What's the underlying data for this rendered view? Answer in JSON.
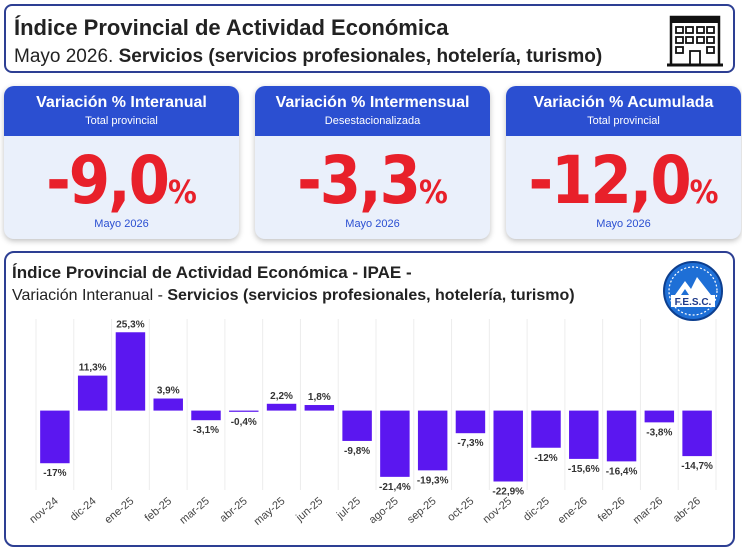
{
  "header": {
    "title": "Índice Provincial de Actividad Económica",
    "subtitle_prefix": "Mayo 2026. ",
    "subtitle_bold": "Servicios (servicios profesionales, hotelería, turismo)",
    "icon": "building-icon"
  },
  "cards": [
    {
      "title": "Variación % Interanual",
      "subtitle": "Total provincial",
      "value": "-9,0",
      "unit": "%",
      "footer": "Mayo 2026"
    },
    {
      "title": "Variación % Intermensual",
      "subtitle": "Desestacionalizada",
      "value": "-3,3",
      "unit": "%",
      "footer": "Mayo 2026"
    },
    {
      "title": "Variación % Acumulada",
      "subtitle": "Total provincial",
      "value": "-12,0",
      "unit": "%",
      "footer": "Mayo 2026"
    }
  ],
  "colors": {
    "accent": "#2b4fd1",
    "border": "#2d3f93",
    "negative_value": "#e8202a",
    "bar": "#5b17f0",
    "card_bg": "#eaf0fb"
  },
  "logo": {
    "text": "F.E.S.C."
  },
  "chart_data": {
    "type": "bar",
    "title": "Índice Provincial de Actividad Económica - IPAE -",
    "subtitle_prefix": "Variación Interanual - ",
    "subtitle_bold": "Servicios (servicios profesionales, hotelería, turismo)",
    "categories": [
      "nov-24",
      "dic-24",
      "ene-25",
      "feb-25",
      "mar-25",
      "abr-25",
      "may-25",
      "jun-25",
      "jul-25",
      "ago-25",
      "sep-25",
      "oct-25",
      "nov-25",
      "dic-25",
      "ene-26",
      "feb-26",
      "mar-26",
      "abr-26"
    ],
    "values": [
      -17,
      11.3,
      25.3,
      3.9,
      -3.1,
      -0.4,
      2.2,
      1.8,
      -9.8,
      -21.4,
      -19.3,
      -7.3,
      -22.9,
      -12,
      -15.6,
      -16.4,
      -3.8,
      -14.7
    ],
    "labels": [
      "-17%",
      "11,3%",
      "25,3%",
      "3,9%",
      "-3,1%",
      "-0,4%",
      "2,2%",
      "1,8%",
      "-9,8%",
      "-21,4%",
      "-19,3%",
      "-7,3%",
      "-22,9%",
      "-12%",
      "-15,6%",
      "-16,4%",
      "-3,8%",
      "-14,7%"
    ],
    "ylim": [
      -25,
      27
    ],
    "grid": true,
    "legend": "none"
  }
}
